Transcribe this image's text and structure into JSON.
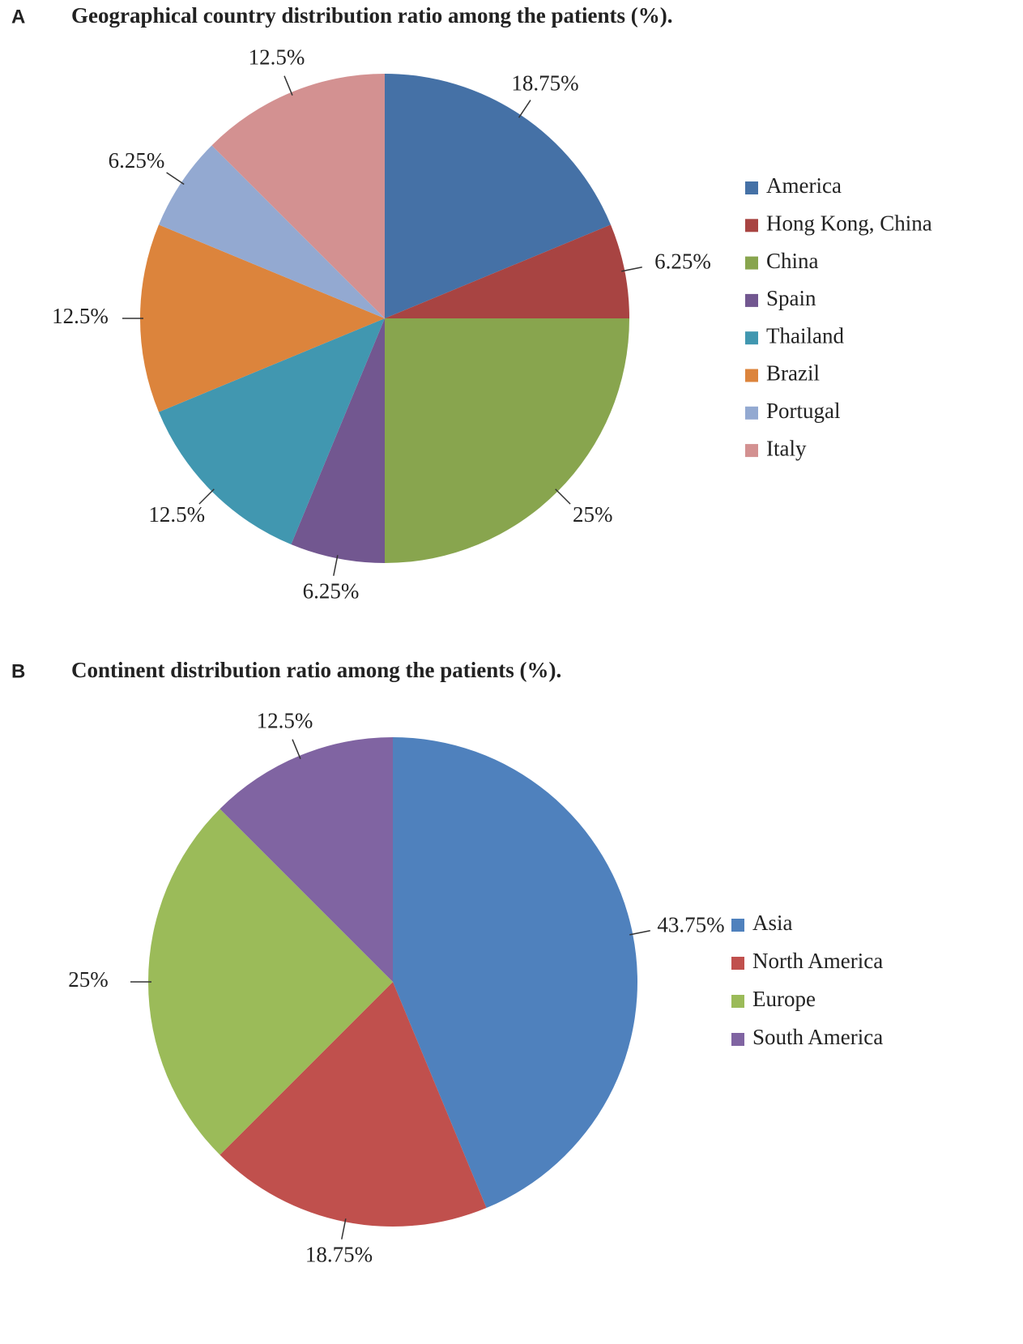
{
  "chart_data": [
    {
      "type": "pie",
      "panel": "A",
      "title": "Geographical country distribution ratio among the patients (%).",
      "categories": [
        "America",
        "Hong Kong, China",
        "China",
        "Spain",
        "Thailand",
        "Brazil",
        "Portugal",
        "Italy"
      ],
      "values": [
        18.75,
        6.25,
        25,
        6.25,
        12.5,
        12.5,
        6.25,
        12.5
      ],
      "value_labels": [
        "18.75%",
        "6.25%",
        "25%",
        "6.25%",
        "12.5%",
        "12.5%",
        "6.25%",
        "12.5%"
      ],
      "colors": [
        "#4571a6",
        "#a84442",
        "#88a54e",
        "#725790",
        "#4197b0",
        "#dc843c",
        "#93a9d1",
        "#d39191"
      ],
      "legend": "right"
    },
    {
      "type": "pie",
      "panel": "B",
      "title": "Continent distribution ratio among the patients (%).",
      "categories": [
        "Asia",
        "North America",
        "Europe",
        "South America"
      ],
      "values": [
        43.75,
        18.75,
        25,
        12.5
      ],
      "value_labels": [
        "43.75%",
        "18.75%",
        "25%",
        "12.5%"
      ],
      "colors": [
        "#4f81bd",
        "#c0504d",
        "#9bbb59",
        "#8064a2"
      ],
      "legend": "right"
    }
  ]
}
